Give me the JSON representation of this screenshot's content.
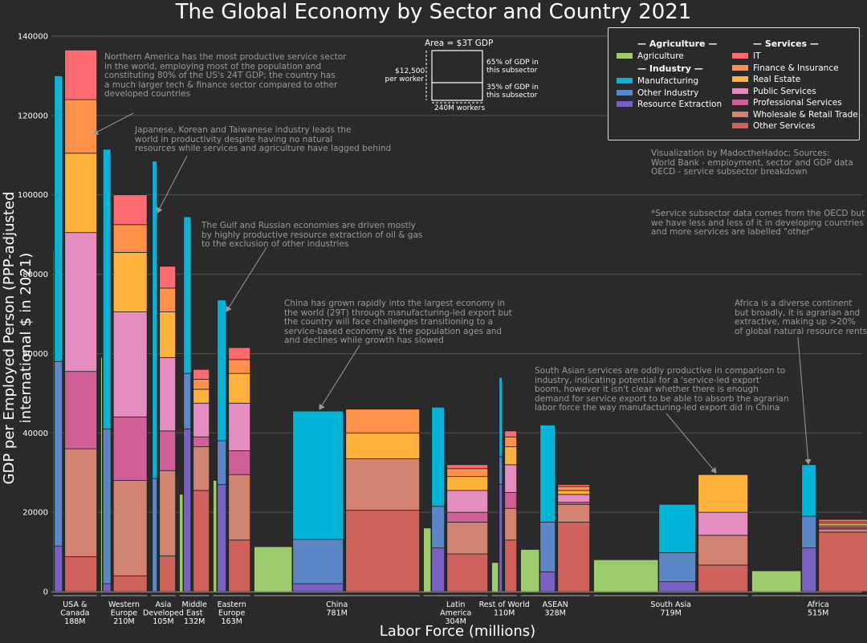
{
  "title": "The Global Economy by Sector and Country 2021",
  "xlabel": "Labor Force (millions)",
  "ylabel": "GDP per Employed Person (PPP-adjusted international $ in 2021)",
  "colors": {
    "Agriculture": "#9ccc6b",
    "Manufacturing": "#00b5d8",
    "Other Industry": "#5b87c7",
    "Resource Extraction": "#7b60c3",
    "IT": "#ff6b70",
    "Finance & Insurance": "#ff9148",
    "Real Estate": "#ffb23c",
    "Public Services": "#e58cc0",
    "Professional Services": "#cf5f95",
    "Wholesale & Retail Trade": "#d38470",
    "Other Services": "#d1625b"
  },
  "legend": {
    "agriculture_header": "— Agriculture —",
    "industry_header": "— Industry —",
    "services_header": "— Services —",
    "agriculture_items": [
      "Agriculture"
    ],
    "industry_items": [
      "Manufacturing",
      "Other Industry",
      "Resource Extraction"
    ],
    "services_items": [
      "IT",
      "Finance & Insurance",
      "Real Estate",
      "Public Services",
      "Professional Services",
      "Wholesale & Retail Trade",
      "Other Services"
    ]
  },
  "area_key": {
    "title": "Area = $3T GDP",
    "height_label_1": "$12,500",
    "height_label_2": "per worker",
    "width_label": "240M workers",
    "upper_label_1": "65% of GDP in",
    "upper_label_2": "this subsector",
    "lower_label_1": "35% of GDP in",
    "lower_label_2": "this subsector"
  },
  "annotations": {
    "usa": "Northern America has the most productive service sector\nin the world, employing most of the population and\nconstituting 80% of the US's 24T GDP; the country has\na much larger tech & finance sector compared to other\ndeveloped countries",
    "asia": "Japanese, Korean and Taiwanese industry leads the\nworld in productivity despite having no natural\nresources while services and agriculture have lagged behind",
    "gulf": "The Gulf and Russian economies are driven mostly\nby highly productive resource extraction of oil & gas\nto the exclusion of other industries",
    "china": "China has grown rapidly into the largest economy in\nthe world (29T) through manufacturing-led export but\nthe country will face challenges transitioning to a\nservice-based economy as the population ages and\nand declines while growth has slowed",
    "south_asia": "South Asian services are oddly productive in comparison to\nindustry, indicating potential for a 'service-led export'\nboom, however it isn't clear whether there is enough\ndemand for service export to be able to absorb the agrarian\nlabor force the way manufacturing-led export did in China",
    "africa": "Africa is a diverse continent\nbut broadly, it is agrarian and\nextractive, making up >20%\nof global natural resource rents",
    "credits": "Visualization by MadoctheHadoc; Sources:\nWorld Bank - employment, sector and GDP data\nOECD - service subsector breakdown",
    "footnote": "*Service subsector data comes from the OECD but\nwe have less and less of it in developing countries\nand more services are labelled \"other\""
  },
  "chart_data": {
    "type": "bar",
    "subtype": "variable-width stacked bars (marimekko)",
    "title": "The Global Economy by Sector and Country 2021",
    "xlabel": "Labor Force (millions)",
    "ylabel": "GDP per Employed Person (PPP-adjusted international $ in 2021)",
    "ylim": [
      0,
      140000
    ],
    "yticks": [
      0,
      20000,
      40000,
      60000,
      80000,
      100000,
      120000,
      140000
    ],
    "grid": "horizontal",
    "legend_position": "top-right",
    "regions": [
      {
        "label": [
          "USA &",
          "Canada"
        ],
        "workers": "188M",
        "agriculture": {
          "width": 0.7,
          "top": 86000
        },
        "industry": {
          "width": 10,
          "stack": [
            [
              "Resource Extraction",
              11500
            ],
            [
              "Other Industry",
              58000
            ],
            [
              "Manufacturing",
              130000
            ]
          ]
        },
        "services": {
          "width": 40,
          "stack": [
            [
              "Other Services",
              8800
            ],
            [
              "Wholesale & Retail Trade",
              36000
            ],
            [
              "Professional Services",
              55500
            ],
            [
              "Public Services",
              90500
            ],
            [
              "Real Estate",
              110500
            ],
            [
              "Finance & Insurance",
              124000
            ],
            [
              "IT",
              136500
            ]
          ]
        }
      },
      {
        "label": [
          "Western",
          "Europe"
        ],
        "workers": "210M",
        "agriculture": {
          "width": 1.5,
          "top": 59000
        },
        "industry": {
          "width": 10,
          "stack": [
            [
              "Resource Extraction",
              2000
            ],
            [
              "Other Industry",
              41000
            ],
            [
              "Manufacturing",
              111500
            ]
          ]
        },
        "services": {
          "width": 42,
          "stack": [
            [
              "Other Services",
              4000
            ],
            [
              "Wholesale & Retail Trade",
              28000
            ],
            [
              "Professional Services",
              44000
            ],
            [
              "Public Services",
              70500
            ],
            [
              "Real Estate",
              85500
            ],
            [
              "Finance & Insurance",
              92500
            ],
            [
              "IT",
              100000
            ]
          ]
        }
      },
      {
        "label": [
          "Asia",
          "Developed"
        ],
        "workers": "105M",
        "agriculture": {
          "width": 0.5,
          "top": 28500
        },
        "industry": {
          "width": 6,
          "stack": [
            [
              "Resource Extraction",
              0
            ],
            [
              "Other Industry",
              28500
            ],
            [
              "Manufacturing",
              108500
            ]
          ]
        },
        "services": {
          "width": 20,
          "stack": [
            [
              "Other Services",
              9000
            ],
            [
              "Wholesale & Retail Trade",
              30500
            ],
            [
              "Professional Services",
              40500
            ],
            [
              "Public Services",
              59000
            ],
            [
              "Real Estate",
              70500
            ],
            [
              "Finance & Insurance",
              76500
            ],
            [
              "IT",
              82000
            ]
          ]
        }
      },
      {
        "label": [
          "Middle",
          "East"
        ],
        "workers": "132M",
        "agriculture": {
          "width": 4,
          "top": 24500
        },
        "industry": {
          "width": 9,
          "stack": [
            [
              "Resource Extraction",
              41000
            ],
            [
              "Other Industry",
              55000
            ],
            [
              "Manufacturing",
              94500
            ]
          ]
        },
        "services": {
          "width": 20,
          "stack": [
            [
              "Other Services",
              25500
            ],
            [
              "Wholesale & Retail Trade",
              36500
            ],
            [
              "Professional Services",
              39000
            ],
            [
              "Public Services",
              47500
            ],
            [
              "Real Estate",
              51000
            ],
            [
              "Finance & Insurance",
              53500
            ],
            [
              "IT",
              56000
            ]
          ]
        }
      },
      {
        "label": [
          "Eastern",
          "Europe"
        ],
        "workers": "163M",
        "agriculture": {
          "width": 4,
          "top": 28000
        },
        "industry": {
          "width": 11,
          "stack": [
            [
              "Resource Extraction",
              27000
            ],
            [
              "Other Industry",
              38000
            ],
            [
              "Manufacturing",
              73500
            ]
          ]
        },
        "services": {
          "width": 27,
          "stack": [
            [
              "Other Services",
              13000
            ],
            [
              "Wholesale & Retail Trade",
              29500
            ],
            [
              "Professional Services",
              35500
            ],
            [
              "Public Services",
              47500
            ],
            [
              "Real Estate",
              55000
            ],
            [
              "Finance & Insurance",
              58500
            ],
            [
              "IT",
              61500
            ]
          ]
        }
      },
      {
        "label": [
          "China"
        ],
        "workers": "781M",
        "agriculture": {
          "width": 47,
          "top": 11300
        },
        "industry": {
          "width": 63,
          "stack": [
            [
              "Resource Extraction",
              2000
            ],
            [
              "Other Industry",
              13200
            ],
            [
              "Manufacturing",
              45500
            ]
          ]
        },
        "services": {
          "width": 92,
          "stack": [
            [
              "Other Services",
              20500
            ],
            [
              "Wholesale & Retail Trade",
              33500
            ],
            [
              "Real Estate",
              40000
            ],
            [
              "Finance & Insurance",
              46000
            ]
          ]
        }
      },
      {
        "label": [
          "Latin",
          "America"
        ],
        "workers": "304M",
        "agriculture": {
          "width": 9,
          "top": 16000
        },
        "industry": {
          "width": 16,
          "stack": [
            [
              "Resource Extraction",
              11000
            ],
            [
              "Other Industry",
              21500
            ],
            [
              "Manufacturing",
              46500
            ]
          ]
        },
        "services": {
          "width": 51,
          "stack": [
            [
              "Other Services",
              9500
            ],
            [
              "Wholesale & Retail Trade",
              17500
            ],
            [
              "Professional Services",
              20000
            ],
            [
              "Public Services",
              25500
            ],
            [
              "Real Estate",
              29000
            ],
            [
              "Finance & Insurance",
              31000
            ],
            [
              "IT",
              32000
            ]
          ]
        }
      },
      {
        "label": [
          "Rest of World"
        ],
        "workers": "110M",
        "agriculture": {
          "width": 8,
          "top": 7300
        },
        "industry": {
          "width": 4,
          "stack": [
            [
              "Resource Extraction",
              27000
            ],
            [
              "Other Industry",
              34000
            ],
            [
              "Manufacturing",
              54000
            ]
          ]
        },
        "services": {
          "width": 15,
          "stack": [
            [
              "Other Services",
              13000
            ],
            [
              "Wholesale & Retail Trade",
              21000
            ],
            [
              "Professional Services",
              25000
            ],
            [
              "Public Services",
              32000
            ],
            [
              "Real Estate",
              36500
            ],
            [
              "Finance & Insurance",
              39000
            ],
            [
              "IT",
              40500
            ]
          ]
        }
      },
      {
        "label": [
          "ASEAN"
        ],
        "workers": "328M",
        "agriculture": {
          "width": 23,
          "top": 10600
        },
        "industry": {
          "width": 19,
          "stack": [
            [
              "Resource Extraction",
              5000
            ],
            [
              "Other Industry",
              17500
            ],
            [
              "Manufacturing",
              42000
            ]
          ]
        },
        "services": {
          "width": 40,
          "stack": [
            [
              "Other Services",
              17500
            ],
            [
              "Wholesale & Retail Trade",
              22000
            ],
            [
              "Professional Services",
              22500
            ],
            [
              "Public Services",
              24500
            ],
            [
              "Real Estate",
              25500
            ],
            [
              "Finance & Insurance",
              26500
            ],
            [
              "IT",
              27000
            ]
          ]
        }
      },
      {
        "label": [
          "South Asia"
        ],
        "workers": "719M",
        "agriculture": {
          "width": 80,
          "top": 8000
        },
        "industry": {
          "width": 46,
          "stack": [
            [
              "Resource Extraction",
              2500
            ],
            [
              "Other Industry",
              9800
            ],
            [
              "Manufacturing",
              22000
            ]
          ]
        },
        "services": {
          "width": 62,
          "stack": [
            [
              "Other Services",
              6700
            ],
            [
              "Wholesale & Retail Trade",
              14200
            ],
            [
              "Public Services",
              20000
            ],
            [
              "Real Estate",
              29500
            ]
          ]
        }
      },
      {
        "label": [
          "Africa"
        ],
        "workers": "515M",
        "agriculture": {
          "width": 61,
          "top": 5200
        },
        "industry": {
          "width": 18,
          "stack": [
            [
              "Resource Extraction",
              11000
            ],
            [
              "Other Industry",
              19000
            ],
            [
              "Manufacturing",
              32000
            ]
          ]
        },
        "services": {
          "width": 82,
          "stack": [
            [
              "Other Services",
              15000
            ],
            [
              "Wholesale & Retail Trade",
              15800
            ],
            [
              "Professional Services",
              16200
            ],
            [
              "Public Services",
              16600
            ],
            [
              "Real Estate",
              17200
            ],
            [
              "Finance & Insurance",
              17600
            ],
            [
              "IT",
              18200
            ]
          ]
        }
      }
    ]
  }
}
